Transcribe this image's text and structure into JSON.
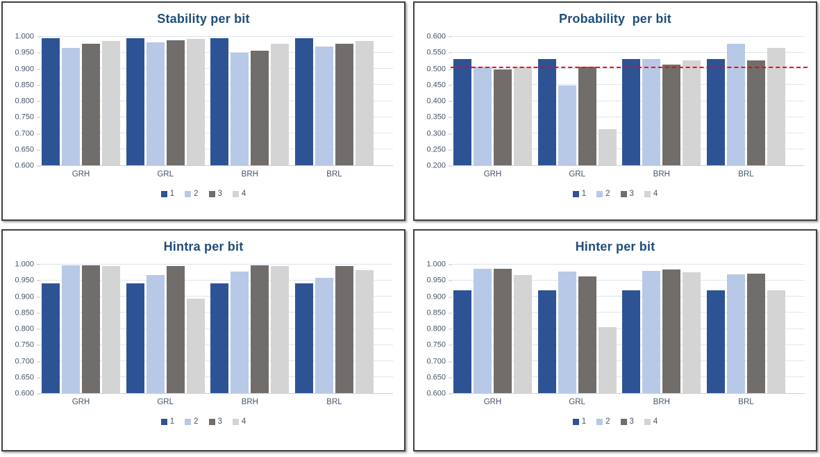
{
  "colors": {
    "series": [
      "#2E5395",
      "#B7C9E6",
      "#716D6B",
      "#D4D4D4"
    ],
    "title_text": "#1F4E79",
    "axis_text": "#44546A",
    "gridline": "#dde5f1",
    "ref_line": "#FF0000",
    "panel_border": "#3f3f3f"
  },
  "chart_data": [
    {
      "id": "stability",
      "type": "bar",
      "title": "Stability per bit",
      "categories": [
        "GRH",
        "GRL",
        "BRH",
        "BRL"
      ],
      "series": [
        {
          "name": "1",
          "color": "#2E5395",
          "values": [
            0.995,
            0.995,
            0.995,
            0.995
          ]
        },
        {
          "name": "2",
          "color": "#B7C9E6",
          "values": [
            0.965,
            0.982,
            0.95,
            0.969
          ]
        },
        {
          "name": "3",
          "color": "#716D6B",
          "values": [
            0.978,
            0.989,
            0.957,
            0.978
          ]
        },
        {
          "name": "4",
          "color": "#D4D4D4",
          "values": [
            0.988,
            0.994,
            0.978,
            0.988
          ]
        }
      ],
      "ylim": [
        0.6,
        1.0
      ],
      "ytick_step": 0.05,
      "grid": true,
      "legend_position": "bottom"
    },
    {
      "id": "probability",
      "type": "bar",
      "title": "Probability  per bit",
      "categories": [
        "GRH",
        "GRL",
        "BRH",
        "BRL"
      ],
      "series": [
        {
          "name": "1",
          "color": "#2E5395",
          "values": [
            0.53,
            0.53,
            0.53,
            0.53
          ]
        },
        {
          "name": "2",
          "color": "#B7C9E6",
          "values": [
            0.507,
            0.449,
            0.53,
            0.579
          ]
        },
        {
          "name": "3",
          "color": "#716D6B",
          "values": [
            0.499,
            0.507,
            0.514,
            0.526
          ]
        },
        {
          "name": "4",
          "color": "#D4D4D4",
          "values": [
            0.506,
            0.313,
            0.526,
            0.565
          ]
        }
      ],
      "ylim": [
        0.2,
        0.6
      ],
      "ytick_step": 0.05,
      "grid": true,
      "legend_position": "bottom",
      "ref_line": {
        "value": 0.505,
        "color": "#FF0000",
        "style": "dashed"
      }
    },
    {
      "id": "hintra",
      "type": "bar",
      "title": "Hintra per bit",
      "categories": [
        "GRH",
        "GRL",
        "BRH",
        "BRL"
      ],
      "series": [
        {
          "name": "1",
          "color": "#2E5395",
          "values": [
            0.941,
            0.941,
            0.941,
            0.941
          ]
        },
        {
          "name": "2",
          "color": "#B7C9E6",
          "values": [
            0.998,
            0.967,
            0.978,
            0.959
          ]
        },
        {
          "name": "3",
          "color": "#716D6B",
          "values": [
            0.998,
            0.996,
            0.998,
            0.995
          ]
        },
        {
          "name": "4",
          "color": "#D4D4D4",
          "values": [
            0.995,
            0.895,
            0.995,
            0.983
          ]
        }
      ],
      "ylim": [
        0.6,
        1.0
      ],
      "ytick_step": 0.05,
      "grid": true,
      "legend_position": "bottom"
    },
    {
      "id": "hinter",
      "type": "bar",
      "title": "Hinter per bit",
      "categories": [
        "GRH",
        "GRL",
        "BRH",
        "BRL"
      ],
      "series": [
        {
          "name": "1",
          "color": "#2E5395",
          "values": [
            0.921,
            0.921,
            0.921,
            0.921
          ]
        },
        {
          "name": "2",
          "color": "#B7C9E6",
          "values": [
            0.986,
            0.979,
            0.98,
            0.97
          ]
        },
        {
          "name": "3",
          "color": "#716D6B",
          "values": [
            0.986,
            0.964,
            0.984,
            0.972
          ]
        },
        {
          "name": "4",
          "color": "#D4D4D4",
          "values": [
            0.967,
            0.806,
            0.976,
            0.921
          ]
        }
      ],
      "ylim": [
        0.6,
        1.0
      ],
      "ytick_step": 0.05,
      "grid": true,
      "legend_position": "bottom"
    }
  ]
}
